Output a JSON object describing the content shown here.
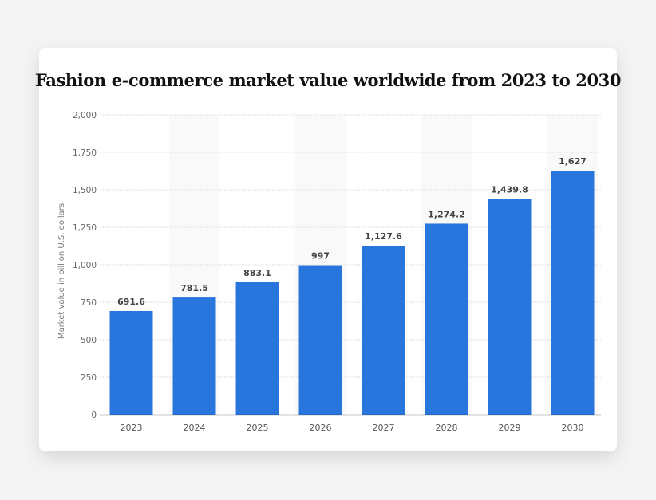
{
  "chart_data": {
    "type": "bar",
    "title": "Fashion e-commerce market value worldwide from 2023 to 2030",
    "xlabel": "",
    "ylabel": "Market value in billion U.S. dollars",
    "categories": [
      "2023",
      "2024",
      "2025",
      "2026",
      "2027",
      "2028",
      "2029",
      "2030"
    ],
    "values": [
      691.6,
      781.5,
      883.1,
      997,
      1127.6,
      1274.2,
      1439.8,
      1627
    ],
    "data_labels": [
      "691.6",
      "781.5",
      "883.1",
      "997",
      "1,127.6",
      "1,274.2",
      "1,439.8",
      "1,627"
    ],
    "ylim": [
      0,
      2000
    ],
    "yticks": [
      0,
      250,
      500,
      750,
      1000,
      1250,
      1500,
      1750,
      2000
    ],
    "ytick_labels": [
      "0",
      "250",
      "500",
      "750",
      "1,000",
      "1,250",
      "1,500",
      "1,750",
      "2,000"
    ],
    "grid": true,
    "alternate_band_shading": true,
    "colors": {
      "bar": "#2876dd",
      "band": "#f9f9f9",
      "grid": "#e2e2e2"
    }
  }
}
